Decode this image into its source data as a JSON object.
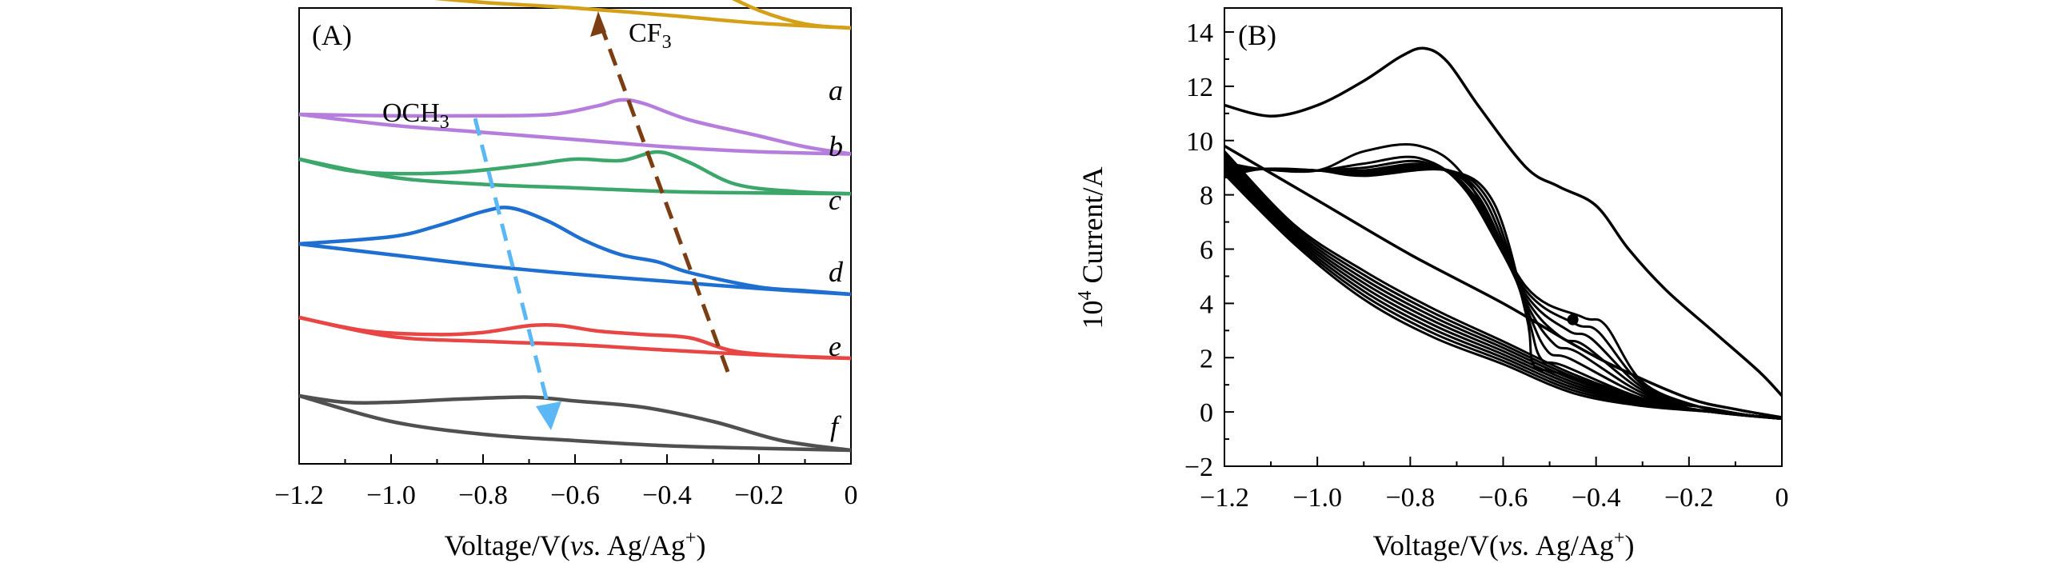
{
  "chart_data": [
    {
      "panel": "(A)",
      "type": "line",
      "xlabel": "Voltage/V(vs. Ag/Ag⁺)",
      "xlabel_main": "Voltage/V(",
      "xlabel_italic": "vs.",
      "xlabel_tail": " Ag/Ag",
      "xlabel_sup": "+",
      "xlabel_close": ")",
      "ylabel": "",
      "xlim": [
        -1.2,
        0
      ],
      "xticks": [
        "−1.2",
        "−1.0",
        "−0.8",
        "−0.6",
        "−0.4",
        "−0.2",
        "0"
      ],
      "y_ticks_shown": false,
      "series": [
        {
          "name": "a",
          "color": "#D4A017",
          "upper": [
            [
              -1.2,
              1.0
            ],
            [
              -1.0,
              1.05
            ],
            [
              -0.8,
              1.25
            ],
            [
              -0.65,
              1.5
            ],
            [
              -0.55,
              1.62
            ],
            [
              -0.48,
              1.58
            ],
            [
              -0.4,
              1.35
            ],
            [
              -0.3,
              1.0
            ],
            [
              -0.2,
              0.72
            ],
            [
              -0.1,
              0.55
            ],
            [
              0,
              0.5
            ]
          ],
          "lower": [
            [
              -1.2,
              1.0
            ],
            [
              -1.0,
              0.92
            ],
            [
              -0.8,
              0.82
            ],
            [
              -0.6,
              0.75
            ],
            [
              -0.4,
              0.66
            ],
            [
              -0.2,
              0.56
            ],
            [
              0,
              0.5
            ]
          ]
        },
        {
          "name": "b",
          "color": "#B57EDC",
          "upper": [
            [
              -1.2,
              0.8
            ],
            [
              -1.0,
              0.78
            ],
            [
              -0.8,
              0.78
            ],
            [
              -0.65,
              0.8
            ],
            [
              -0.55,
              0.92
            ],
            [
              -0.5,
              1.0
            ],
            [
              -0.45,
              0.95
            ],
            [
              -0.35,
              0.72
            ],
            [
              -0.2,
              0.5
            ],
            [
              -0.1,
              0.35
            ],
            [
              0,
              0.25
            ]
          ],
          "lower": [
            [
              -1.2,
              0.8
            ],
            [
              -1.0,
              0.65
            ],
            [
              -0.8,
              0.55
            ],
            [
              -0.6,
              0.45
            ],
            [
              -0.4,
              0.35
            ],
            [
              -0.2,
              0.28
            ],
            [
              0,
              0.25
            ]
          ]
        },
        {
          "name": "c",
          "color": "#3CA66B",
          "upper": [
            [
              -1.2,
              0.9
            ],
            [
              -1.1,
              0.75
            ],
            [
              -1.0,
              0.7
            ],
            [
              -0.85,
              0.72
            ],
            [
              -0.7,
              0.82
            ],
            [
              -0.6,
              0.9
            ],
            [
              -0.5,
              0.88
            ],
            [
              -0.42,
              1.0
            ],
            [
              -0.35,
              0.85
            ],
            [
              -0.25,
              0.55
            ],
            [
              -0.12,
              0.45
            ],
            [
              0,
              0.42
            ]
          ],
          "lower": [
            [
              -1.2,
              0.9
            ],
            [
              -1.0,
              0.65
            ],
            [
              -0.8,
              0.55
            ],
            [
              -0.6,
              0.5
            ],
            [
              -0.4,
              0.45
            ],
            [
              -0.2,
              0.43
            ],
            [
              0,
              0.42
            ]
          ]
        },
        {
          "name": "d",
          "color": "#1F6FD0",
          "upper": [
            [
              -1.2,
              1.0
            ],
            [
              -1.0,
              1.1
            ],
            [
              -0.9,
              1.25
            ],
            [
              -0.8,
              1.45
            ],
            [
              -0.74,
              1.5
            ],
            [
              -0.66,
              1.32
            ],
            [
              -0.58,
              1.05
            ],
            [
              -0.5,
              0.85
            ],
            [
              -0.42,
              0.75
            ],
            [
              -0.35,
              0.6
            ],
            [
              -0.2,
              0.4
            ],
            [
              -0.1,
              0.35
            ],
            [
              0,
              0.3
            ]
          ],
          "lower": [
            [
              -1.2,
              1.0
            ],
            [
              -1.0,
              0.85
            ],
            [
              -0.8,
              0.7
            ],
            [
              -0.6,
              0.58
            ],
            [
              -0.4,
              0.48
            ],
            [
              -0.2,
              0.38
            ],
            [
              0,
              0.3
            ]
          ]
        },
        {
          "name": "e",
          "color": "#E84545",
          "upper": [
            [
              -1.2,
              0.8
            ],
            [
              -1.05,
              0.6
            ],
            [
              -0.9,
              0.55
            ],
            [
              -0.8,
              0.58
            ],
            [
              -0.7,
              0.68
            ],
            [
              -0.63,
              0.68
            ],
            [
              -0.55,
              0.6
            ],
            [
              -0.45,
              0.55
            ],
            [
              -0.35,
              0.5
            ],
            [
              -0.25,
              0.3
            ],
            [
              -0.1,
              0.22
            ],
            [
              0,
              0.2
            ]
          ],
          "lower": [
            [
              -1.2,
              0.8
            ],
            [
              -1.0,
              0.52
            ],
            [
              -0.8,
              0.45
            ],
            [
              -0.6,
              0.4
            ],
            [
              -0.4,
              0.32
            ],
            [
              -0.2,
              0.25
            ],
            [
              0,
              0.2
            ]
          ]
        },
        {
          "name": "f",
          "color": "#505050",
          "upper": [
            [
              -1.2,
              1.0
            ],
            [
              -1.1,
              0.9
            ],
            [
              -1.0,
              0.9
            ],
            [
              -0.85,
              0.95
            ],
            [
              -0.7,
              0.98
            ],
            [
              -0.6,
              0.92
            ],
            [
              -0.45,
              0.82
            ],
            [
              -0.3,
              0.6
            ],
            [
              -0.15,
              0.3
            ],
            [
              0,
              0.15
            ]
          ],
          "lower": [
            [
              -1.2,
              1.0
            ],
            [
              -1.0,
              0.6
            ],
            [
              -0.8,
              0.4
            ],
            [
              -0.6,
              0.3
            ],
            [
              -0.4,
              0.22
            ],
            [
              -0.2,
              0.18
            ],
            [
              0,
              0.15
            ]
          ]
        }
      ],
      "annotations": {
        "cf3_main": "CF",
        "cf3_sub": "3",
        "och3_main": "OCH",
        "och3_sub": "3",
        "cf3_arrow_color": "#7A3E12",
        "och3_arrow_color": "#5BB8F5"
      }
    },
    {
      "panel": "(B)",
      "type": "line",
      "xlabel": "Voltage/V(vs. Ag/Ag⁺)",
      "xlabel_main": "Voltage/V(",
      "xlabel_italic": "vs.",
      "xlabel_tail": " Ag/Ag",
      "xlabel_sup": "+",
      "xlabel_close": ")",
      "ylabel": "10⁴ Current/A",
      "ylabel_base": "10",
      "ylabel_sup": "4",
      "ylabel_tail": " Current/A",
      "xlim": [
        -1.2,
        0
      ],
      "ylim": [
        -2,
        15
      ],
      "xticks": [
        "−1.2",
        "−1.0",
        "−0.8",
        "−0.6",
        "−0.4",
        "−0.2",
        "0"
      ],
      "yticks": [
        "−2",
        "0",
        "2",
        "4",
        "6",
        "8",
        "10",
        "12",
        "14"
      ],
      "color": "#000000",
      "outer_cycle": {
        "upper": [
          [
            -1.2,
            11.3
          ],
          [
            -1.1,
            10.9
          ],
          [
            -1.0,
            11.3
          ],
          [
            -0.9,
            12.2
          ],
          [
            -0.82,
            13.1
          ],
          [
            -0.77,
            13.4
          ],
          [
            -0.72,
            12.9
          ],
          [
            -0.65,
            11.2
          ],
          [
            -0.55,
            9.0
          ],
          [
            -0.48,
            8.3
          ],
          [
            -0.4,
            7.6
          ],
          [
            -0.33,
            6.0
          ],
          [
            -0.25,
            4.5
          ],
          [
            -0.15,
            3.0
          ],
          [
            -0.05,
            1.5
          ],
          [
            0,
            0.6
          ]
        ],
        "lower": [
          [
            -1.2,
            9.8
          ],
          [
            -1.0,
            7.8
          ],
          [
            -0.8,
            5.8
          ],
          [
            -0.6,
            4.0
          ],
          [
            -0.45,
            2.5
          ],
          [
            -0.35,
            1.6
          ],
          [
            -0.2,
            0.5
          ],
          [
            -0.1,
            0.1
          ],
          [
            0,
            -0.2
          ]
        ]
      },
      "inner_cycles": [
        {
          "peak_x": -0.78,
          "peak_y": 9.8,
          "shoulder_x": -0.38,
          "shoulder_y": 3.2
        },
        {
          "peak_x": -0.78,
          "peak_y": 9.35,
          "shoulder_x": -0.395,
          "shoulder_y": 2.95
        },
        {
          "peak_x": -0.77,
          "peak_y": 9.2,
          "shoulder_x": -0.41,
          "shoulder_y": 2.7
        },
        {
          "peak_x": -0.76,
          "peak_y": 9.1,
          "shoulder_x": -0.425,
          "shoulder_y": 2.45
        },
        {
          "peak_x": -0.75,
          "peak_y": 9.05,
          "shoulder_x": -0.44,
          "shoulder_y": 2.2
        },
        {
          "peak_x": -0.74,
          "peak_y": 9.0,
          "shoulder_x": -0.455,
          "shoulder_y": 1.95
        },
        {
          "peak_x": -0.73,
          "peak_y": 8.95,
          "shoulder_x": -0.47,
          "shoulder_y": 1.7
        },
        {
          "peak_x": -0.72,
          "peak_y": 8.9,
          "shoulder_x": -0.485,
          "shoulder_y": 1.45
        }
      ],
      "marker_point": [
        -0.45,
        3.4
      ]
    }
  ]
}
